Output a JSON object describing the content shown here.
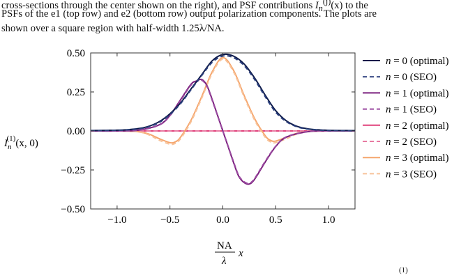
{
  "text": {
    "line1": "cross-sections through the center shown on the right), and PSF contributions",
    "line1_sym": "I",
    "line1_sub": "n",
    "line1_sup": "(j)",
    "line1_arg": "(x)",
    "line1_end": "to the",
    "line2": "PSFs of the e1 (top row) and e2 (bottom row) output polarization components. The plots are",
    "line3": "shown over a square region with half-width 1.25λ/NA.",
    "line_bottom": "(1)"
  },
  "chart_data": {
    "type": "line",
    "xlabel": "NA/λ x",
    "xlabel_num": "NA",
    "xlabel_den": "λ",
    "xlabel_var": "x",
    "ylabel": "I_n^(1)(x,0)",
    "ylabel_sym": "I",
    "ylabel_sub": "n",
    "ylabel_sup": "(1)",
    "ylabel_arg": "(x, 0)",
    "xlim": [
      -1.25,
      1.25
    ],
    "ylim": [
      -0.5,
      0.5
    ],
    "xticks": [
      -1.0,
      -0.5,
      0.0,
      0.5,
      1.0
    ],
    "xtick_labels": [
      "−1.0",
      "−0.5",
      "0.0",
      "0.5",
      "1.0"
    ],
    "yticks": [
      -0.5,
      -0.25,
      0.0,
      0.25,
      0.5
    ],
    "ytick_labels": [
      "−0.50",
      "−0.25",
      "0.00",
      "0.25",
      "0.50"
    ],
    "legend_position": "right",
    "series": [
      {
        "name": "n = 0 (optimal)",
        "n_label": "n",
        "label_rest": " = 0 (optimal)",
        "color": "#0d1a4a",
        "dash": false,
        "x": [
          -1.25,
          -1.1,
          -1.0,
          -0.9,
          -0.8,
          -0.7,
          -0.6,
          -0.5,
          -0.4,
          -0.3,
          -0.2,
          -0.1,
          0.0,
          0.1,
          0.2,
          0.3,
          0.4,
          0.5,
          0.6,
          0.7,
          0.8,
          0.9,
          1.0,
          1.1,
          1.25
        ],
        "y": [
          0.003,
          0.004,
          0.005,
          0.008,
          0.015,
          0.03,
          0.06,
          0.11,
          0.18,
          0.27,
          0.36,
          0.45,
          0.49,
          0.48,
          0.43,
          0.34,
          0.23,
          0.13,
          0.065,
          0.03,
          0.014,
          0.007,
          0.004,
          0.003,
          0.002
        ]
      },
      {
        "name": "n = 0 (SEO)",
        "n_label": "n",
        "label_rest": " = 0 (SEO)",
        "color": "#2b3f7d",
        "dash": true,
        "x": [
          -1.25,
          -1.1,
          -1.0,
          -0.9,
          -0.8,
          -0.7,
          -0.6,
          -0.5,
          -0.4,
          -0.3,
          -0.2,
          -0.1,
          0.0,
          0.1,
          0.2,
          0.3,
          0.4,
          0.5,
          0.6,
          0.7,
          0.8,
          0.9,
          1.0,
          1.1,
          1.25
        ],
        "y": [
          0.002,
          0.003,
          0.004,
          0.007,
          0.013,
          0.027,
          0.055,
          0.105,
          0.175,
          0.265,
          0.355,
          0.44,
          0.48,
          0.47,
          0.42,
          0.33,
          0.22,
          0.12,
          0.06,
          0.027,
          0.012,
          0.006,
          0.003,
          0.002,
          0.001
        ]
      },
      {
        "name": "n = 1 (optimal)",
        "n_label": "n",
        "label_rest": " = 1 (optimal)",
        "color": "#7a1f7d",
        "dash": false,
        "x": [
          -1.25,
          -1.0,
          -0.8,
          -0.6,
          -0.5,
          -0.4,
          -0.3,
          -0.25,
          -0.2,
          -0.15,
          -0.1,
          -0.05,
          0.0,
          0.05,
          0.1,
          0.15,
          0.2,
          0.25,
          0.3,
          0.4,
          0.5,
          0.6,
          0.8,
          1.0,
          1.25
        ],
        "y": [
          0.0,
          0.0,
          0.005,
          0.04,
          0.1,
          0.2,
          0.3,
          0.32,
          0.33,
          0.29,
          0.2,
          0.1,
          0.0,
          -0.1,
          -0.2,
          -0.29,
          -0.33,
          -0.34,
          -0.31,
          -0.2,
          -0.1,
          -0.04,
          -0.005,
          0.0,
          0.0
        ]
      },
      {
        "name": "n = 1 (SEO)",
        "n_label": "n",
        "label_rest": " = 1 (SEO)",
        "color": "#9a4aa0",
        "dash": true,
        "x": [
          -1.25,
          -1.0,
          -0.8,
          -0.6,
          -0.5,
          -0.4,
          -0.3,
          -0.25,
          -0.2,
          -0.15,
          -0.1,
          -0.05,
          0.0,
          0.05,
          0.1,
          0.15,
          0.2,
          0.25,
          0.3,
          0.4,
          0.5,
          0.6,
          0.8,
          1.0,
          1.25
        ],
        "y": [
          0.0,
          0.0,
          0.004,
          0.038,
          0.098,
          0.195,
          0.295,
          0.315,
          0.325,
          0.285,
          0.195,
          0.098,
          0.0,
          -0.098,
          -0.195,
          -0.285,
          -0.325,
          -0.335,
          -0.305,
          -0.195,
          -0.098,
          -0.038,
          -0.004,
          0.0,
          0.0
        ]
      },
      {
        "name": "n = 2 (optimal)",
        "n_label": "n",
        "label_rest": " = 2 (optimal)",
        "color": "#e0407a",
        "dash": false,
        "x": [
          -1.25,
          1.25
        ],
        "y": [
          0.0,
          0.0
        ]
      },
      {
        "name": "n = 2 (SEO)",
        "n_label": "n",
        "label_rest": " = 2 (SEO)",
        "color": "#e87aa2",
        "dash": true,
        "x": [
          -1.25,
          1.25
        ],
        "y": [
          0.0,
          0.0
        ]
      },
      {
        "name": "n = 3 (optimal)",
        "n_label": "n",
        "label_rest": " = 3 (optimal)",
        "color": "#f5a56c",
        "dash": false,
        "x": [
          -1.25,
          -1.0,
          -0.8,
          -0.7,
          -0.6,
          -0.5,
          -0.45,
          -0.4,
          -0.3,
          -0.2,
          -0.1,
          0.0,
          0.1,
          0.2,
          0.3,
          0.4,
          0.45,
          0.5,
          0.6,
          0.7,
          0.8,
          1.0,
          1.25
        ],
        "y": [
          0.0,
          0.0,
          -0.005,
          -0.02,
          -0.05,
          -0.075,
          -0.07,
          -0.04,
          0.07,
          0.22,
          0.38,
          0.47,
          0.39,
          0.23,
          0.08,
          -0.03,
          -0.06,
          -0.065,
          -0.04,
          -0.015,
          -0.004,
          0.0,
          0.0
        ]
      },
      {
        "name": "n = 3 (SEO)",
        "n_label": "n",
        "label_rest": " = 3 (SEO)",
        "color": "#f8c39a",
        "dash": true,
        "x": [
          -1.25,
          -1.0,
          -0.8,
          -0.7,
          -0.6,
          -0.5,
          -0.45,
          -0.4,
          -0.3,
          -0.2,
          -0.1,
          0.0,
          0.1,
          0.2,
          0.3,
          0.4,
          0.45,
          0.5,
          0.6,
          0.7,
          0.8,
          1.0,
          1.25
        ],
        "y": [
          0.0,
          0.0,
          -0.006,
          -0.025,
          -0.06,
          -0.085,
          -0.08,
          -0.05,
          0.06,
          0.21,
          0.37,
          0.46,
          0.38,
          0.22,
          0.07,
          -0.04,
          -0.07,
          -0.075,
          -0.05,
          -0.02,
          -0.005,
          0.0,
          0.0
        ]
      }
    ]
  }
}
